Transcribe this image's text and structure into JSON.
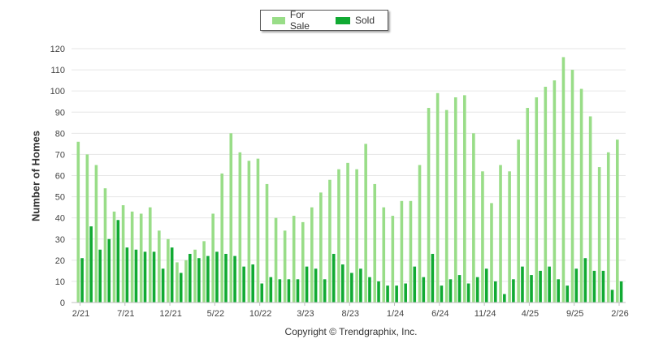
{
  "chart_data": {
    "type": "bar",
    "title": "",
    "xlabel": "",
    "ylabel": "Number of Homes",
    "ylim": [
      0,
      120
    ],
    "yticks": [
      0,
      10,
      20,
      30,
      40,
      50,
      60,
      70,
      80,
      90,
      100,
      110,
      120
    ],
    "grid": true,
    "legend_position": "top-center",
    "categories": [
      "2/21",
      "3/21",
      "4/21",
      "5/21",
      "6/21",
      "7/21",
      "8/21",
      "9/21",
      "10/21",
      "11/21",
      "12/21",
      "1/22",
      "2/22",
      "3/22",
      "4/22",
      "5/22",
      "6/22",
      "7/22",
      "8/22",
      "9/22",
      "10/22",
      "11/22",
      "12/22",
      "1/23",
      "2/23",
      "3/23",
      "4/23",
      "5/23",
      "6/23",
      "7/23",
      "8/23",
      "9/23",
      "10/23",
      "11/23",
      "12/23",
      "1/24",
      "2/24",
      "3/24",
      "4/24",
      "5/24",
      "6/24",
      "7/24",
      "8/24",
      "9/24",
      "10/24",
      "11/24",
      "12/24",
      "1/25",
      "2/25",
      "3/25",
      "4/25",
      "5/25",
      "6/25",
      "7/25",
      "8/25",
      "9/25",
      "10/25",
      "11/25",
      "12/25",
      "1/26",
      "2/26"
    ],
    "x_tick_labels": [
      {
        "index": 0,
        "label": "2/21"
      },
      {
        "index": 5,
        "label": "7/21"
      },
      {
        "index": 10,
        "label": "12/21"
      },
      {
        "index": 15,
        "label": "5/22"
      },
      {
        "index": 20,
        "label": "10/22"
      },
      {
        "index": 25,
        "label": "3/23"
      },
      {
        "index": 30,
        "label": "8/23"
      },
      {
        "index": 35,
        "label": "1/24"
      },
      {
        "index": 40,
        "label": "6/24"
      },
      {
        "index": 45,
        "label": "11/24"
      },
      {
        "index": 50,
        "label": "4/25"
      },
      {
        "index": 55,
        "label": "9/25"
      },
      {
        "index": 60,
        "label": "2/26"
      }
    ],
    "series": [
      {
        "name": "For Sale",
        "color": "#99dd88",
        "values": [
          76,
          70,
          65,
          54,
          43,
          46,
          43,
          42,
          45,
          34,
          30,
          19,
          20,
          25,
          29,
          42,
          61,
          80,
          71,
          67,
          68,
          56,
          40,
          34,
          41,
          38,
          45,
          52,
          58,
          63,
          66,
          63,
          75,
          56,
          45,
          41,
          48,
          48,
          65,
          92,
          99,
          91,
          97,
          98,
          80,
          62,
          47,
          65,
          62,
          77,
          92,
          97,
          102,
          105,
          116,
          110,
          101,
          88,
          64,
          71,
          77
        ]
      },
      {
        "name": "Sold",
        "color": "#11aa33",
        "values": [
          21,
          36,
          25,
          30,
          39,
          26,
          25,
          24,
          24,
          16,
          26,
          14,
          23,
          21,
          22,
          24,
          23,
          22,
          17,
          18,
          9,
          12,
          11,
          11,
          11,
          17,
          16,
          11,
          23,
          18,
          14,
          16,
          12,
          10,
          8,
          8,
          9,
          17,
          12,
          23,
          8,
          11,
          13,
          9,
          12,
          16,
          10,
          4,
          11,
          17,
          13,
          15,
          17,
          11,
          8,
          16,
          21,
          15,
          15,
          6,
          10
        ]
      }
    ]
  },
  "footer": {
    "copyright": "Copyright © Trendgraphix, Inc."
  }
}
